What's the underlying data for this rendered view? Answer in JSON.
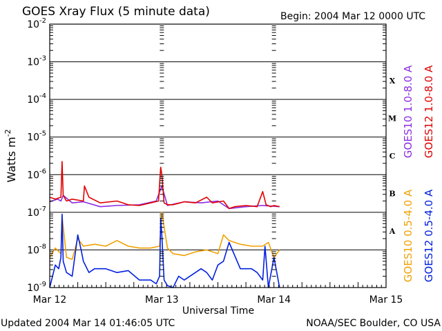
{
  "header": {
    "title": "GOES Xray Flux (5 minute data)",
    "begin": "Begin:  2004 Mar 12 0000 UTC"
  },
  "footer": {
    "updated": "Updated 2004 Mar 14 01:46:05 UTC",
    "credit": "NOAA/SEC Boulder, CO USA"
  },
  "chart_data": {
    "type": "line",
    "title": "GOES Xray Flux (5 minute data)",
    "xlabel": "Universal Time",
    "ylabel": "Watts m",
    "ylabel_sup": "-2",
    "xlim": [
      0,
      3
    ],
    "ylim_log10": [
      -9,
      -2
    ],
    "y_scale": "log",
    "grid": true,
    "x_ticks": [
      {
        "label": "Mar 12",
        "value": 0
      },
      {
        "label": "Mar 13",
        "value": 1
      },
      {
        "label": "Mar 14",
        "value": 2
      },
      {
        "label": "Mar 15",
        "value": 3
      }
    ],
    "y_ticks": [
      {
        "base": "10",
        "exp": "-2",
        "value": -2
      },
      {
        "base": "10",
        "exp": "-3",
        "value": -3
      },
      {
        "base": "10",
        "exp": "-4",
        "value": -4
      },
      {
        "base": "10",
        "exp": "-5",
        "value": -5
      },
      {
        "base": "10",
        "exp": "-6",
        "value": -6
      },
      {
        "base": "10",
        "exp": "-7",
        "value": -7
      },
      {
        "base": "10",
        "exp": "-8",
        "value": -8
      },
      {
        "base": "10",
        "exp": "-9",
        "value": -9
      }
    ],
    "flare_classes": [
      {
        "label": "X",
        "value": -3.5
      },
      {
        "label": "M",
        "value": -4.5
      },
      {
        "label": "C",
        "value": -5.5
      },
      {
        "label": "B",
        "value": -6.5
      },
      {
        "label": "A",
        "value": -7.5
      }
    ],
    "legend_placement": "right",
    "series": [
      {
        "name": "GOES10 1.0-8.0 A",
        "color": "#8a2be2",
        "x": [
          0,
          0.07,
          0.1,
          0.12,
          0.2,
          0.3,
          0.45,
          0.6,
          0.8,
          0.95,
          1.0,
          1.05,
          1.2,
          1.35,
          1.5,
          1.6,
          1.75,
          1.9,
          2.05
        ],
        "log10_y": [
          -6.72,
          -6.65,
          -6.7,
          -6.55,
          -6.75,
          -6.72,
          -6.85,
          -6.82,
          -6.8,
          -6.7,
          -6.3,
          -6.82,
          -6.72,
          -6.75,
          -6.7,
          -6.9,
          -6.85,
          -6.82,
          -6.85
        ]
      },
      {
        "name": "GOES12 1.0-8.0 A",
        "color": "#e00000",
        "x": [
          0,
          0.05,
          0.1,
          0.11,
          0.12,
          0.15,
          0.2,
          0.3,
          0.31,
          0.35,
          0.45,
          0.6,
          0.7,
          0.8,
          0.9,
          0.97,
          0.99,
          1.0,
          1.02,
          1.05,
          1.1,
          1.2,
          1.3,
          1.4,
          1.45,
          1.55,
          1.6,
          1.65,
          1.75,
          1.85,
          1.9,
          1.93,
          1.97,
          2.0,
          2.05
        ],
        "log10_y": [
          -6.6,
          -6.65,
          -6.6,
          -5.65,
          -6.55,
          -6.7,
          -6.65,
          -6.7,
          -6.3,
          -6.6,
          -6.75,
          -6.7,
          -6.8,
          -6.82,
          -6.75,
          -6.7,
          -5.8,
          -6.0,
          -6.75,
          -6.8,
          -6.8,
          -6.72,
          -6.75,
          -6.6,
          -6.75,
          -6.7,
          -6.9,
          -6.85,
          -6.82,
          -6.85,
          -6.45,
          -6.8,
          -6.85,
          -6.82,
          -6.85
        ]
      },
      {
        "name": "GOES10 0.5-4.0 A",
        "color": "#f0a000",
        "x": [
          0,
          0.05,
          0.1,
          0.11,
          0.15,
          0.2,
          0.25,
          0.3,
          0.4,
          0.5,
          0.6,
          0.7,
          0.8,
          0.9,
          0.98,
          1.0,
          1.05,
          1.1,
          1.2,
          1.3,
          1.4,
          1.5,
          1.55,
          1.6,
          1.7,
          1.8,
          1.9,
          1.95,
          2.0,
          2.05
        ],
        "log10_y": [
          -8.2,
          -7.95,
          -8.1,
          -7.1,
          -8.2,
          -8.25,
          -7.7,
          -7.9,
          -7.85,
          -7.9,
          -7.75,
          -7.9,
          -7.95,
          -7.95,
          -7.9,
          -7.0,
          -7.95,
          -8.1,
          -8.15,
          -8.05,
          -8.0,
          -8.1,
          -7.6,
          -7.75,
          -7.85,
          -7.9,
          -7.9,
          -7.8,
          -8.2,
          -8.0
        ]
      },
      {
        "name": "GOES12 0.5-4.0 A",
        "color": "#0020e0",
        "x": [
          0,
          0.05,
          0.08,
          0.1,
          0.11,
          0.12,
          0.15,
          0.2,
          0.25,
          0.28,
          0.3,
          0.35,
          0.4,
          0.5,
          0.6,
          0.7,
          0.8,
          0.9,
          0.95,
          0.98,
          0.99,
          1.0,
          1.02,
          1.05,
          1.1,
          1.15,
          1.2,
          1.3,
          1.35,
          1.4,
          1.45,
          1.5,
          1.55,
          1.6,
          1.7,
          1.8,
          1.85,
          1.9,
          1.92,
          1.95,
          2.0,
          2.05
        ],
        "log10_y": [
          -9.0,
          -8.4,
          -8.5,
          -8.2,
          -7.05,
          -8.3,
          -8.6,
          -8.7,
          -7.6,
          -8.0,
          -8.3,
          -8.6,
          -8.5,
          -8.5,
          -8.6,
          -8.55,
          -8.8,
          -8.8,
          -8.9,
          -8.7,
          -7.15,
          -7.6,
          -8.8,
          -8.95,
          -9.0,
          -8.7,
          -8.8,
          -8.6,
          -8.5,
          -8.6,
          -8.8,
          -8.4,
          -8.3,
          -7.8,
          -8.5,
          -8.5,
          -8.6,
          -8.8,
          -7.9,
          -9.0,
          -8.2,
          -9.0
        ]
      }
    ]
  }
}
